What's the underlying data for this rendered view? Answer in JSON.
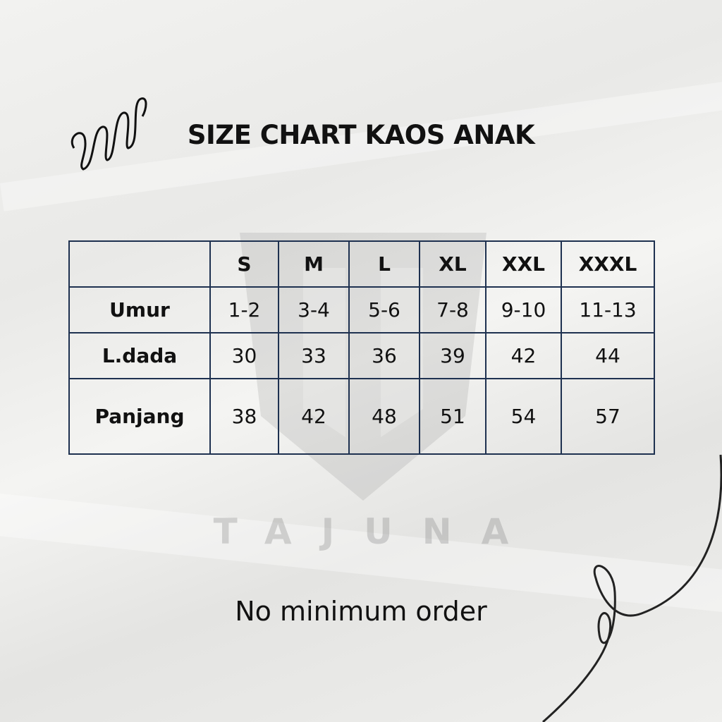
{
  "title": "SIZE CHART KAOS ANAK",
  "watermark": "TAJUNA",
  "table": {
    "header": [
      "",
      "S",
      "M",
      "L",
      "XL",
      "XXL",
      "XXXL"
    ],
    "rows": [
      {
        "label": "Umur",
        "values": [
          "1-2",
          "3-4",
          "5-6",
          "7-8",
          "9-10",
          "11-13"
        ]
      },
      {
        "label": "L.dada",
        "values": [
          "30",
          "33",
          "36",
          "39",
          "42",
          "44"
        ]
      },
      {
        "label": "Panjang",
        "values": [
          "38",
          "42",
          "48",
          "51",
          "54",
          "57"
        ]
      }
    ]
  },
  "footer": "No minimum order",
  "colors": {
    "border": "#1e3150",
    "text": "#111111"
  }
}
